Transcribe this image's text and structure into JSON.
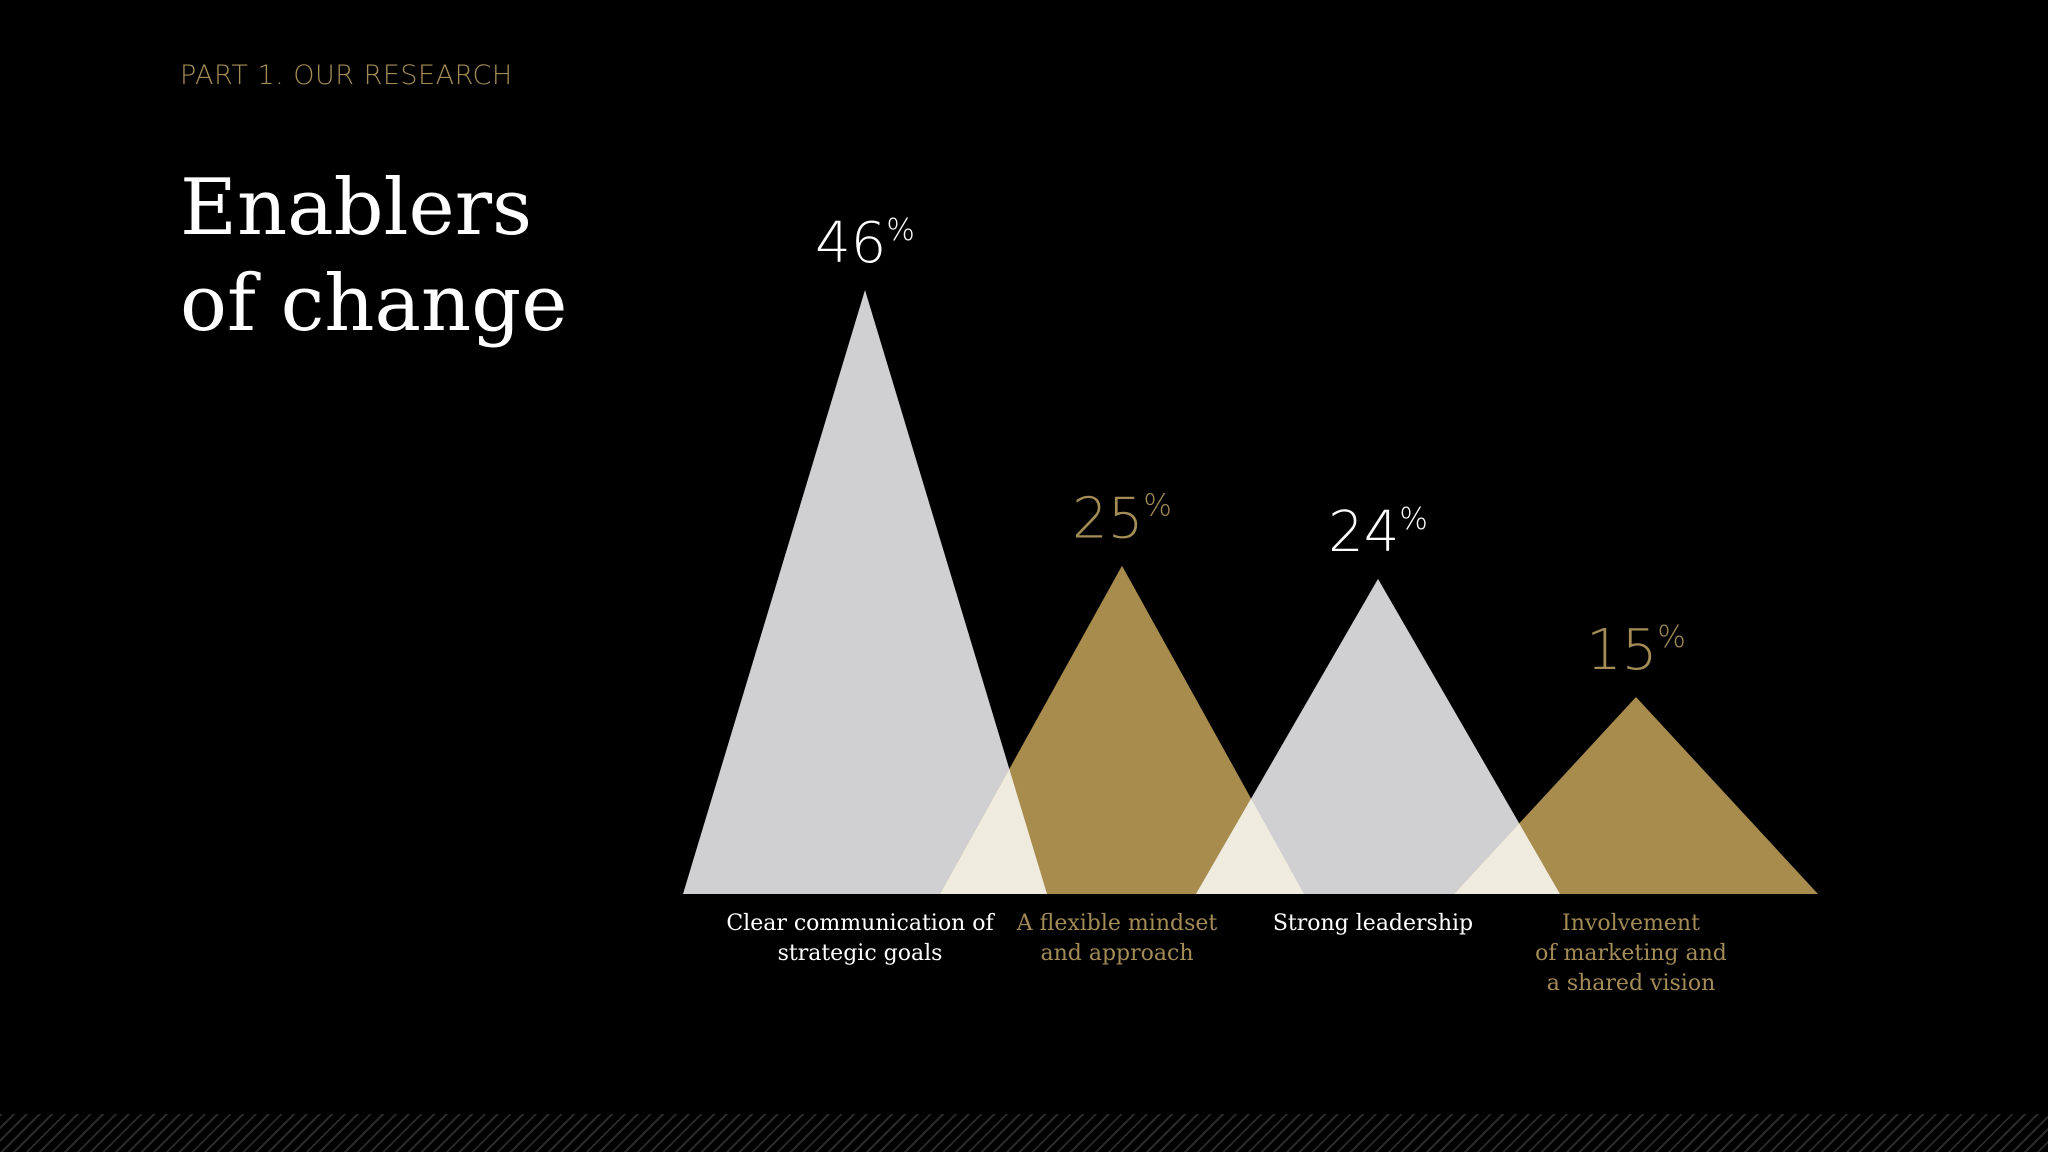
{
  "header": {
    "kicker": "PART 1. OUR RESEARCH",
    "title_line1": "Enablers",
    "title_line2": "of change"
  },
  "colors": {
    "background": "#000000",
    "light": "#d0cfd2",
    "gold": "#a88c4d",
    "overlap": "#efebde",
    "gold_text": "#a38c56",
    "white_text": "#ffffff"
  },
  "chart_data": {
    "type": "bar",
    "title": "Enablers of change",
    "unit": "%",
    "ylim": [
      0,
      50
    ],
    "categories": [
      [
        "Clear communication of",
        "strategic goals"
      ],
      [
        "A flexible mindset",
        "and approach"
      ],
      [
        "Strong leadership"
      ],
      [
        "Involvement",
        "of marketing and",
        "a shared vision"
      ]
    ],
    "values": [
      46,
      25,
      24,
      15
    ],
    "value_labels": [
      "46",
      "25",
      "24",
      "15"
    ],
    "styles": [
      "light",
      "gold",
      "light",
      "gold"
    ]
  }
}
